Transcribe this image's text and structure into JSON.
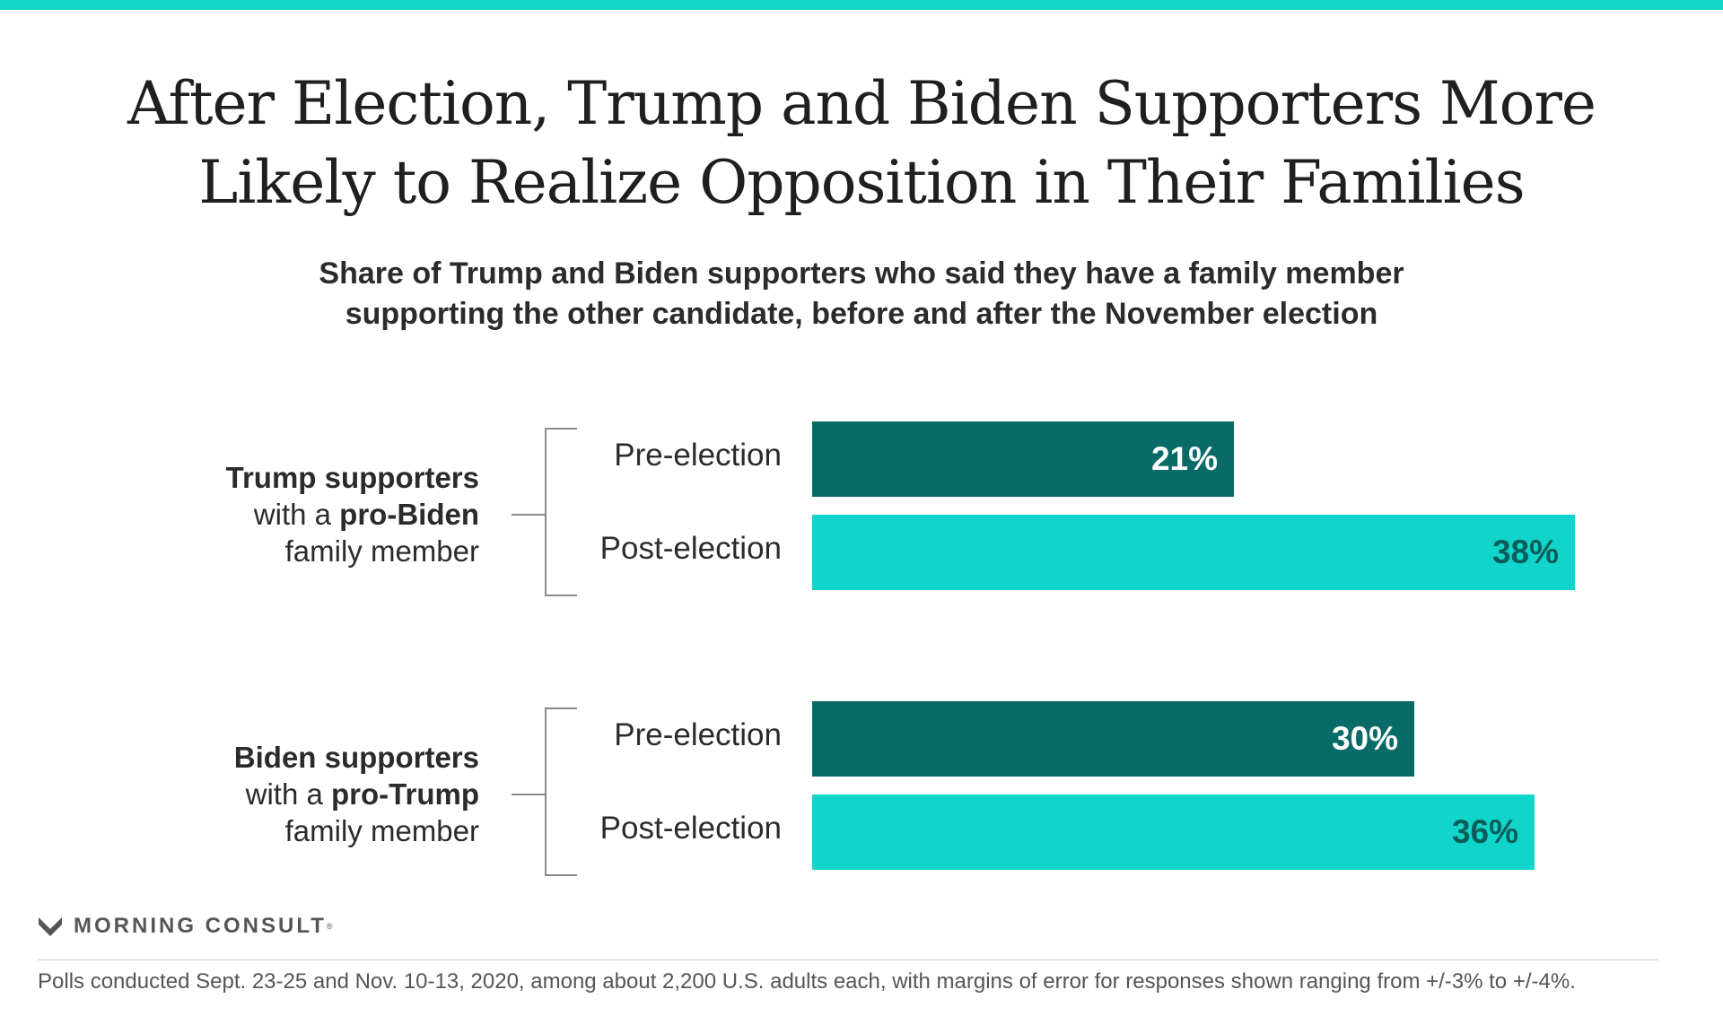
{
  "colors": {
    "accent_bar": "#14d6c8",
    "pre": "#086b67",
    "post": "#11d5ca",
    "pre_text": "#ffffff",
    "post_text": "#0a5d5a"
  },
  "title_line1": "After Election, Trump and Biden Supporters More",
  "title_line2": "Likely to Realize Opposition in Their Families",
  "subtitle_line1": "Share of Trump and Biden supporters who said they have a family member",
  "subtitle_line2": "supporting the other candidate, before and after the November election",
  "chart_data": {
    "type": "bar",
    "orientation": "horizontal",
    "value_suffix": "%",
    "xlim": [
      0,
      40
    ],
    "groups": [
      {
        "label_parts": [
          "Trump supporters",
          "with a ",
          "pro-Biden",
          "family member"
        ],
        "bars": [
          {
            "name": "Pre-election",
            "value": 21,
            "label": "21%"
          },
          {
            "name": "Post-election",
            "value": 38,
            "label": "38%"
          }
        ]
      },
      {
        "label_parts": [
          "Biden supporters",
          "with a ",
          "pro-Trump",
          "family member"
        ],
        "bars": [
          {
            "name": "Pre-election",
            "value": 30,
            "label": "30%"
          },
          {
            "name": "Post-election",
            "value": 36,
            "label": "36%"
          }
        ]
      }
    ]
  },
  "logo": {
    "text": "MORNING CONSULT",
    "reg": "®",
    "icon": "m-chevron-icon"
  },
  "footnote": "Polls conducted Sept. 23-25 and Nov. 10-13, 2020, among about 2,200 U.S. adults each, with margins of error for responses shown ranging from +/-3% to +/-4%."
}
